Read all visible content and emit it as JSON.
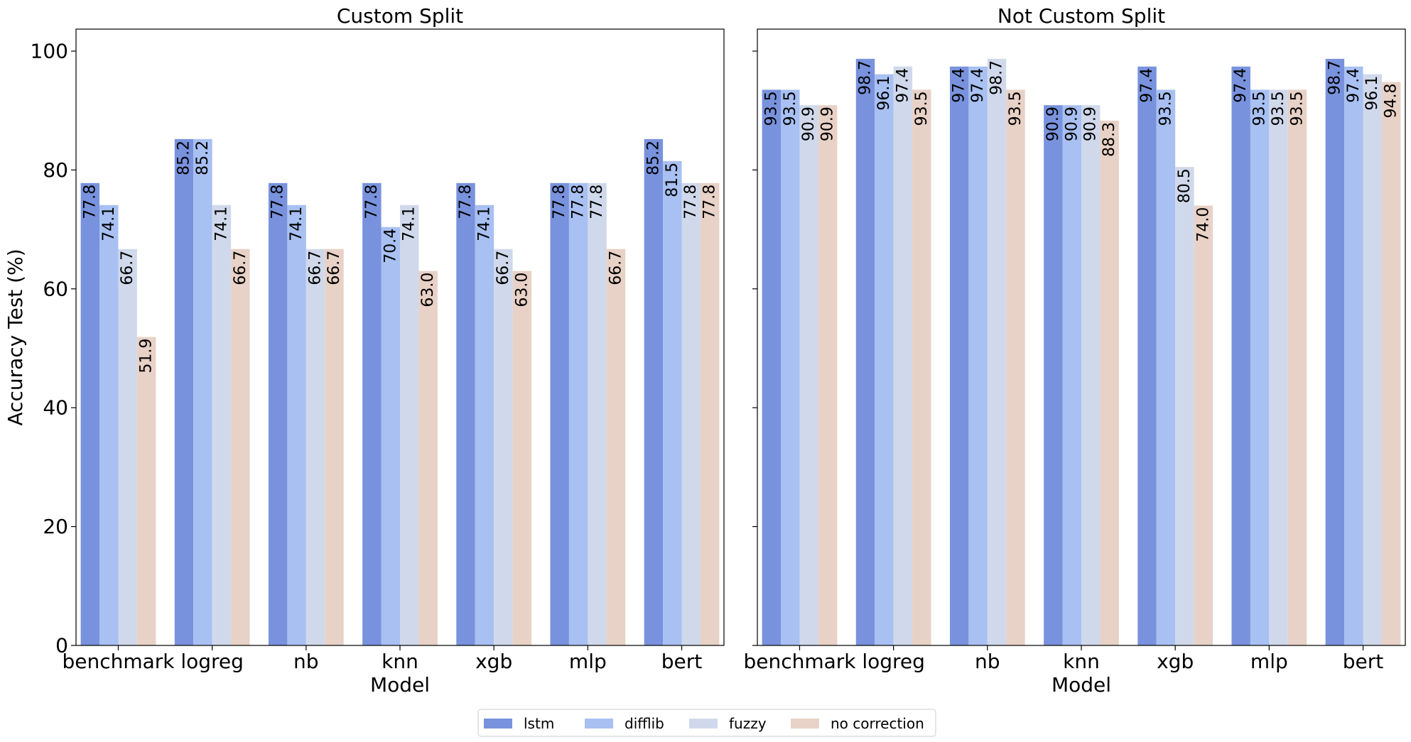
{
  "chart_data": [
    {
      "type": "bar",
      "title": "Custom Split",
      "xlabel": "Model",
      "ylabel": "Accuracy Test (%)",
      "ylim": [
        0,
        103.7
      ],
      "yticks": [
        0,
        20,
        40,
        60,
        80,
        100
      ],
      "categories": [
        "benchmark",
        "logreg",
        "nb",
        "knn",
        "xgb",
        "mlp",
        "bert"
      ],
      "series": [
        {
          "name": "lstm",
          "values": [
            77.8,
            85.2,
            77.8,
            77.8,
            77.8,
            77.8,
            85.2
          ]
        },
        {
          "name": "difflib",
          "values": [
            74.1,
            85.2,
            74.1,
            70.4,
            74.1,
            77.8,
            81.5
          ]
        },
        {
          "name": "fuzzy",
          "values": [
            66.7,
            74.1,
            66.7,
            74.1,
            66.7,
            77.8,
            77.8
          ]
        },
        {
          "name": "no correction",
          "values": [
            51.9,
            66.7,
            66.7,
            63.0,
            63.0,
            66.7,
            77.8
          ]
        }
      ]
    },
    {
      "type": "bar",
      "title": "Not Custom Split",
      "xlabel": "Model",
      "ylabel": "",
      "ylim": [
        0,
        103.7
      ],
      "yticks": [
        0,
        20,
        40,
        60,
        80,
        100
      ],
      "categories": [
        "benchmark",
        "logreg",
        "nb",
        "knn",
        "xgb",
        "mlp",
        "bert"
      ],
      "series": [
        {
          "name": "lstm",
          "values": [
            93.5,
            98.7,
            97.4,
            90.9,
            97.4,
            97.4,
            98.7
          ]
        },
        {
          "name": "difflib",
          "values": [
            93.5,
            96.1,
            97.4,
            90.9,
            93.5,
            93.5,
            97.4
          ]
        },
        {
          "name": "fuzzy",
          "values": [
            90.9,
            97.4,
            98.7,
            90.9,
            80.5,
            93.5,
            96.1
          ]
        },
        {
          "name": "no correction",
          "values": [
            90.9,
            93.5,
            93.5,
            88.3,
            74.0,
            93.5,
            94.8
          ]
        }
      ]
    }
  ],
  "legend": {
    "placement": "bottom-center",
    "entries": [
      {
        "name": "lstm",
        "color": "#7892dd"
      },
      {
        "name": "difflib",
        "color": "#a8c0f2"
      },
      {
        "name": "fuzzy",
        "color": "#d0d9eb"
      },
      {
        "name": "no correction",
        "color": "#e8d1c6"
      }
    ]
  }
}
